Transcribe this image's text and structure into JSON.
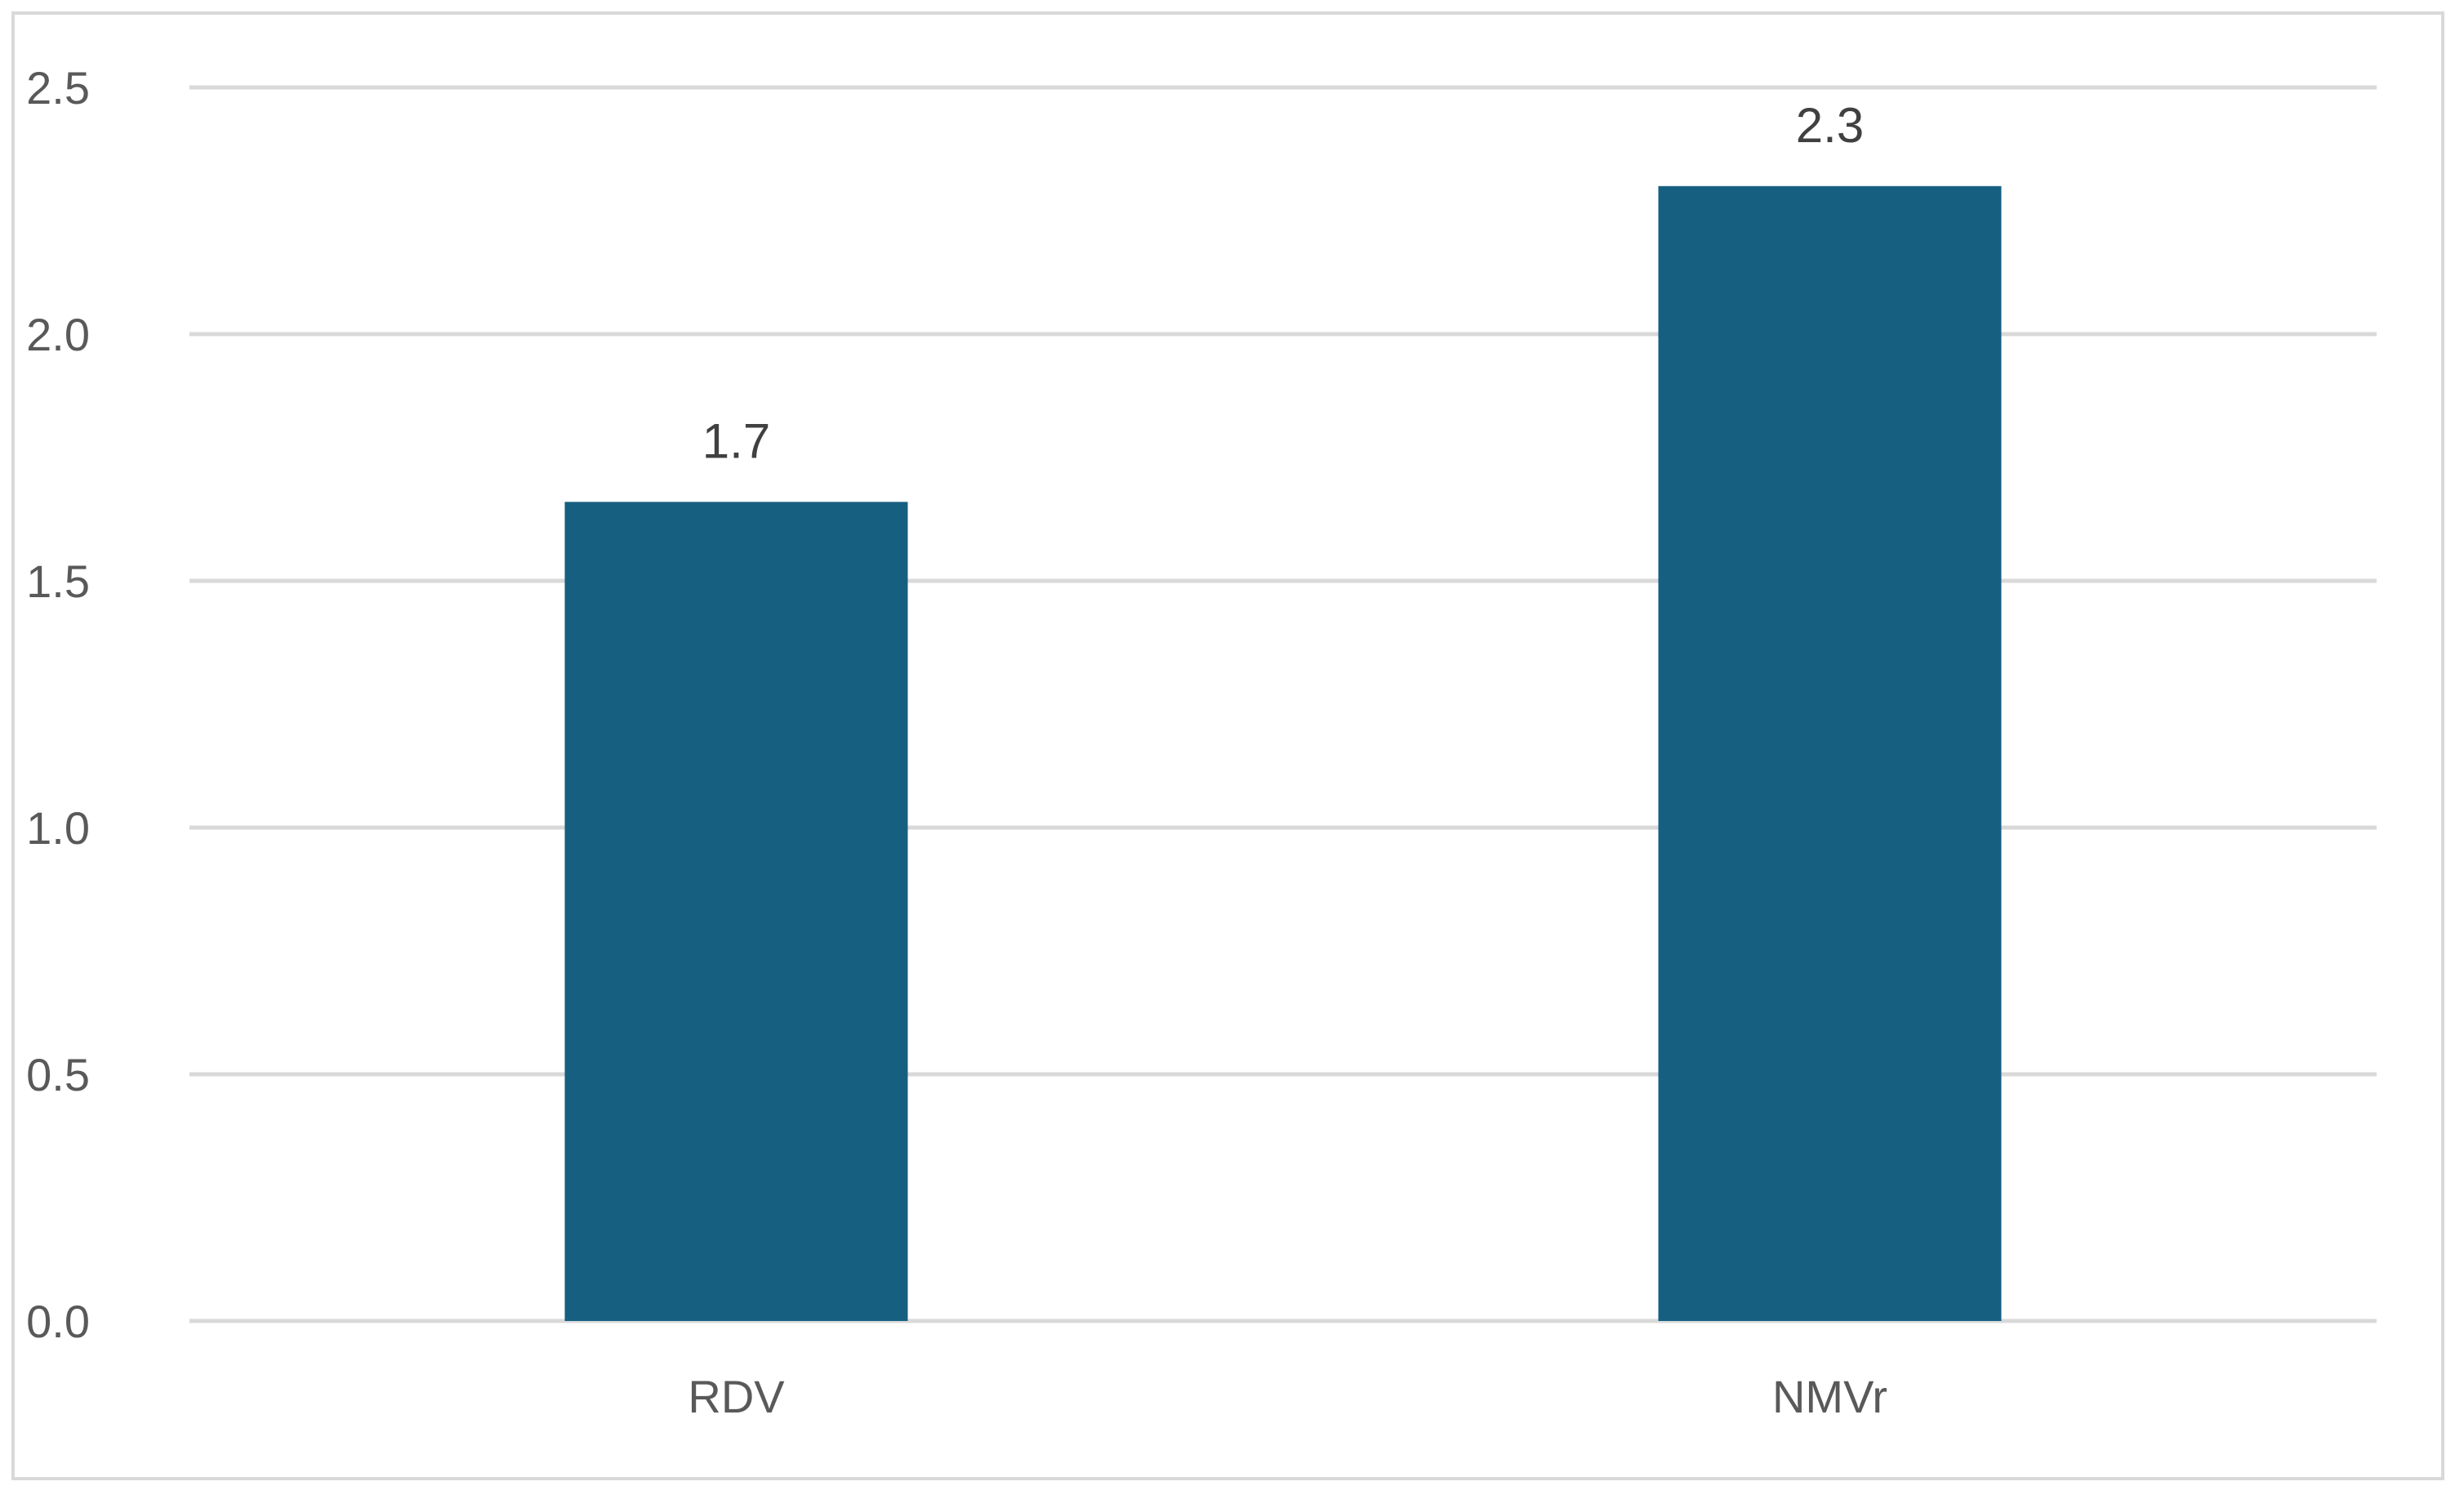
{
  "chart_data": {
    "type": "bar",
    "categories": [
      "RDV",
      "NMVr"
    ],
    "values": [
      1.66,
      2.3
    ],
    "data_labels": [
      "1.7",
      "2.3"
    ],
    "ylim": [
      0,
      2.5
    ],
    "yticks": [
      0.0,
      0.5,
      1.0,
      1.5,
      2.0,
      2.5
    ],
    "ytick_labels": [
      "0.0",
      "0.5",
      "1.0",
      "1.5",
      "2.0",
      "2.5"
    ],
    "grid": true,
    "legend": "none",
    "title": "",
    "xlabel": "",
    "ylabel": ""
  },
  "colors": {
    "bar": "#175f81",
    "gridline": "#d9d9d9",
    "frame": "#d9d9d9",
    "tick_text": "#595959",
    "data_label_text": "#404040"
  }
}
